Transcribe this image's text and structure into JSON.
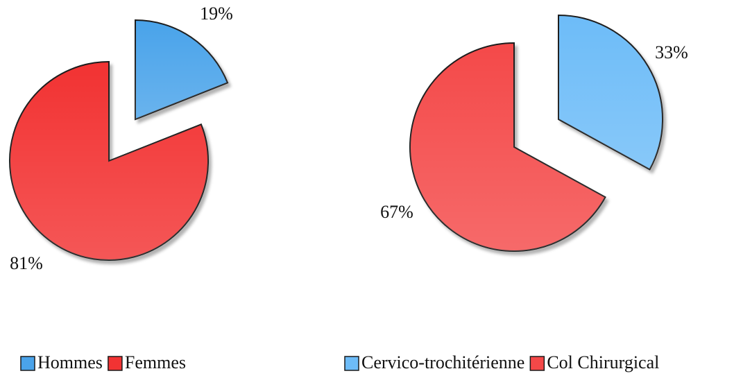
{
  "chart_data": [
    {
      "type": "pie",
      "categories": [
        "Hommes",
        "Femmes"
      ],
      "values": [
        19,
        81
      ],
      "value_labels": [
        "19%",
        "81%"
      ],
      "colors": [
        "#4aa3ea",
        "#f23333"
      ]
    },
    {
      "type": "pie",
      "categories": [
        "Cervico-trochitérienne",
        "Col Chirurgical"
      ],
      "values": [
        33,
        67
      ],
      "value_labels": [
        "33%",
        "67%"
      ],
      "colors": [
        "#6dbcf8",
        "#f44848"
      ]
    }
  ]
}
